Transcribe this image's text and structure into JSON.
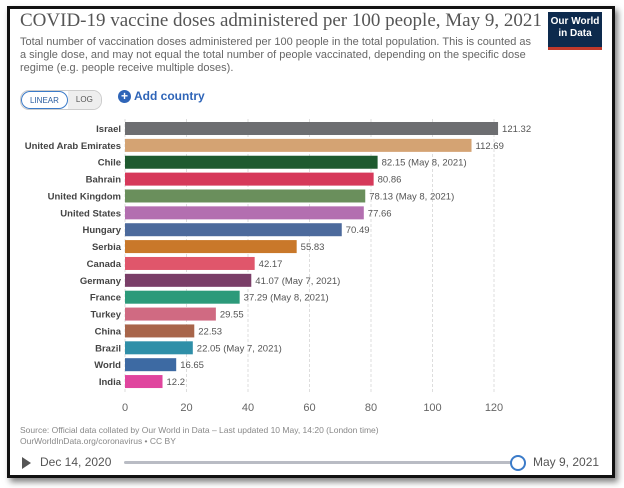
{
  "header": {
    "title": "COVID-19 vaccine doses administered per 100 people, May 9, 2021",
    "subtitle": "Total number of vaccination doses administered per 100 people in the total population. This is counted as a single dose, and may not equal the total number of people vaccinated, depending on the specific dose regime (e.g. people receive multiple doses).",
    "logo": "Our World in Data"
  },
  "controls": {
    "linear": "LINEAR",
    "log": "LOG",
    "add_country": "Add country",
    "scale": "linear"
  },
  "chart_data": {
    "type": "bar",
    "orientation": "horizontal",
    "xlim": [
      0,
      120
    ],
    "xticks": [
      0,
      20,
      40,
      60,
      80,
      100,
      120
    ],
    "grid": true,
    "categories": [
      "Israel",
      "United Arab Emirates",
      "Chile",
      "Bahrain",
      "United Kingdom",
      "United States",
      "Hungary",
      "Serbia",
      "Canada",
      "Germany",
      "France",
      "Turkey",
      "China",
      "Brazil",
      "World",
      "India"
    ],
    "values": [
      121.32,
      112.69,
      82.15,
      80.86,
      78.13,
      77.66,
      70.49,
      55.83,
      42.17,
      41.07,
      37.29,
      29.55,
      22.53,
      22.05,
      16.65,
      12.2
    ],
    "labels": [
      "121.32",
      "112.69",
      "82.15 (May 8, 2021)",
      "80.86",
      "78.13 (May 8, 2021)",
      "77.66",
      "70.49",
      "55.83",
      "42.17",
      "41.07 (May 7, 2021)",
      "37.29 (May 8, 2021)",
      "29.55",
      "22.53",
      "22.05 (May 7, 2021)",
      "16.65",
      "12.2"
    ],
    "colors": [
      "#6d6e71",
      "#d4a373",
      "#1e5a2f",
      "#d6395a",
      "#6a8f5c",
      "#b36fb0",
      "#4c6a9c",
      "#c9782a",
      "#e0566b",
      "#7a3e68",
      "#2c9a7a",
      "#d06a82",
      "#a8654a",
      "#2f8fa8",
      "#3d6aa3",
      "#e0459e"
    ]
  },
  "footer": {
    "source": "Source: Official data collated by Our World in Data – Last updated 10 May, 14:20 (London time)",
    "url": "OurWorldInData.org/coronavirus • CC BY"
  },
  "timeline": {
    "start": "Dec 14, 2020",
    "end": "May 9, 2021"
  }
}
